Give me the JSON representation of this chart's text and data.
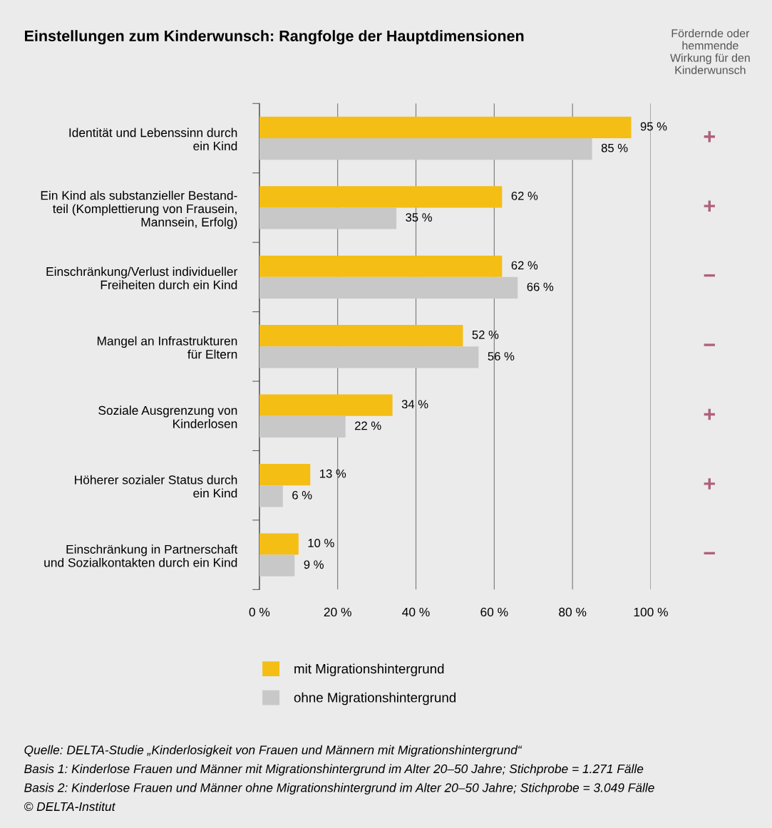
{
  "chart_data": {
    "type": "bar",
    "orientation": "horizontal",
    "title": "Einstellungen zum Kinderwunsch: Rangfolge der Hauptdimensionen",
    "categories": [
      "Identität und Lebenssinn durch\nein Kind",
      "Ein Kind als substanzieller Bestand-\nteil (Komplettierung von Frausein,\nMannsein, Erfolg)",
      "Einschränkung/Verlust individueller\nFreiheiten durch ein Kind",
      "Mangel an Infrastrukturen\nfür Eltern",
      "Soziale Ausgrenzung von\nKinderlosen",
      "Höherer sozialer Status durch\nein Kind",
      "Einschränkung in Partnerschaft\nund Sozialkontakten durch ein Kind"
    ],
    "series": [
      {
        "name": "mit Migrationshintergrund",
        "color": "#f4be14",
        "values": [
          95,
          62,
          62,
          52,
          34,
          13,
          10
        ],
        "value_labels": [
          "95 %",
          "62 %",
          "62 %",
          "52 %",
          "34 %",
          "13 %",
          "10 %"
        ]
      },
      {
        "name": "ohne Migrationshintergrund",
        "color": "#c8c8c8",
        "values": [
          85,
          35,
          66,
          56,
          22,
          6,
          9
        ],
        "value_labels": [
          "85 %",
          "35 %",
          "66 %",
          "56 %",
          "22 %",
          "6 %",
          "9 %"
        ]
      }
    ],
    "xlim": [
      0,
      100
    ],
    "xticks": [
      {
        "value": 0,
        "label": "0 %"
      },
      {
        "value": 20,
        "label": "20 %"
      },
      {
        "value": 40,
        "label": "40 %"
      },
      {
        "value": 60,
        "label": "60 %"
      },
      {
        "value": 80,
        "label": "80 %"
      },
      {
        "value": 100,
        "label": "100 %"
      }
    ],
    "grid": "x",
    "legend": "bottom",
    "annotations": [
      "Fördernde oder\nhemmende\nWirkung für den\nKinderwunsch",
      "+",
      "+",
      "−",
      "−",
      "+",
      "+",
      "−",
      "Quelle: DELTA-Studie „Kinderlosigkeit von Frauen und Männern mit Migrationshintergrund“",
      "Basis 1: Kinderlose Frauen und Männer mit Migrationshintergrund im Alter 20–50 Jahre; Stichprobe = 1.271 Fälle",
      "Basis 2: Kinderlose Frauen und Männer ohne Migrationshintergrund im Alter 20–50 Jahre; Stichprobe = 3.049 Fälle",
      "© DELTA-Institut"
    ]
  }
}
